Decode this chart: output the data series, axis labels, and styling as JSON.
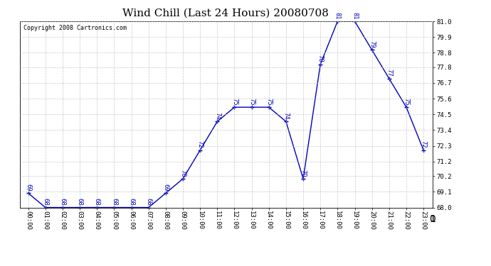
{
  "title": "Wind Chill (Last 24 Hours) 20080708",
  "copyright": "Copyright 2008 Cartronics.com",
  "line_color": "#0000bb",
  "marker": "+",
  "marker_color": "#0000bb",
  "background_color": "#ffffff",
  "grid_color": "#bbbbbb",
  "times": [
    "00:00",
    "01:00",
    "02:00",
    "03:00",
    "04:00",
    "05:00",
    "06:00",
    "07:00",
    "08:00",
    "09:00",
    "10:00",
    "11:00",
    "12:00",
    "13:00",
    "14:00",
    "15:00",
    "16:00",
    "17:00",
    "18:00",
    "19:00",
    "20:00",
    "21:00",
    "22:00",
    "23:00"
  ],
  "values": [
    69,
    68,
    68,
    68,
    68,
    68,
    68,
    68,
    69,
    70,
    72,
    74,
    75,
    75,
    75,
    74,
    70,
    78,
    81,
    81,
    79,
    77,
    75,
    72
  ],
  "ylim_min": 68.0,
  "ylim_max": 81.0,
  "yticks": [
    68.0,
    69.1,
    70.2,
    71.2,
    72.3,
    73.4,
    74.5,
    75.6,
    76.7,
    77.8,
    78.8,
    79.9,
    81.0
  ],
  "title_fontsize": 11,
  "label_fontsize": 6.5,
  "annot_fontsize": 6,
  "copyright_fontsize": 6
}
